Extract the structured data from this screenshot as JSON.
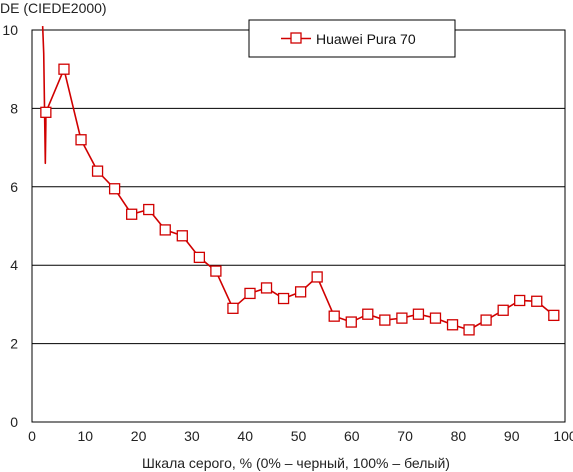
{
  "chart_data": {
    "type": "line",
    "title": "",
    "ylabel": "DE (CIEDE2000)",
    "xlabel": "Шкала серого, % (0% – черный, 100% – белый)",
    "xlim": [
      0,
      100
    ],
    "ylim": [
      0,
      10
    ],
    "x_ticks": [
      "0",
      "10",
      "20",
      "30",
      "40",
      "50",
      "60",
      "70",
      "80",
      "90",
      "100"
    ],
    "y_ticks": [
      "0",
      "2",
      "4",
      "6",
      "8",
      "10"
    ],
    "grid": "horizontal",
    "legend_position": "top-center",
    "series": [
      {
        "name": "Huawei Pura 70",
        "color": "#d00000",
        "marker": "open-square",
        "lead_in": [
          [
            2.0,
            10.1
          ],
          [
            2.2,
            9.4
          ],
          [
            2.5,
            6.6
          ],
          [
            2.6,
            7.6
          ]
        ],
        "x": [
          2.6,
          6.0,
          9.2,
          12.3,
          15.5,
          18.7,
          21.9,
          25.0,
          28.2,
          31.4,
          34.5,
          37.7,
          40.9,
          44.0,
          47.2,
          50.4,
          53.5,
          56.7,
          59.9,
          63.0,
          66.2,
          69.4,
          72.5,
          75.7,
          78.9,
          82.0,
          85.2,
          88.4,
          91.5,
          94.7,
          97.9
        ],
        "y": [
          7.9,
          9.0,
          7.2,
          6.4,
          5.95,
          5.3,
          5.42,
          4.9,
          4.75,
          4.2,
          3.85,
          2.9,
          3.28,
          3.42,
          3.15,
          3.32,
          3.7,
          2.7,
          2.55,
          2.75,
          2.6,
          2.65,
          2.75,
          2.65,
          2.48,
          2.35,
          2.6,
          2.85,
          3.1,
          3.08,
          2.72
        ]
      }
    ]
  }
}
